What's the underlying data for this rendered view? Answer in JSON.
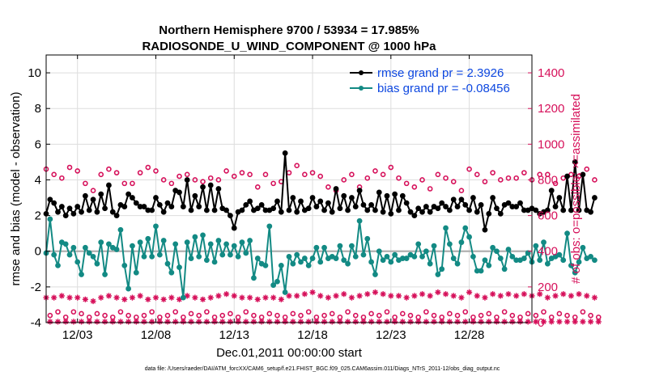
{
  "chart_data": {
    "type": "line",
    "title_line1": "Northern Hemisphere 9700 / 53934 = 17.985%",
    "title_line2": "RADIOSONDE_U_WIND_COMPONENT @ 1000 hPa",
    "xlabel": "Dec.01,2011 00:00:00 start",
    "ylabel_left": "rmse and bias (model - observation)",
    "ylabel_right": "# of obs: o=possible; ×=assimilated",
    "footer": "data file: /Users/raeder/DAI/ATM_forcXX/CAM6_setup/f.e21.FHIST_BGC.f09_025.CAM6assim.011/Diags_NTrS_2011-12/obs_diag_output.nc",
    "xlim": [
      0,
      31
    ],
    "ylim_left": [
      -4,
      11
    ],
    "ylim_right": [
      0,
      1500
    ],
    "x_ticks": [
      2,
      7,
      12,
      17,
      22,
      27
    ],
    "x_tick_labels": [
      "12/03",
      "12/08",
      "12/13",
      "12/18",
      "12/23",
      "12/28"
    ],
    "y_left_ticks": [
      -4,
      -2,
      0,
      2,
      4,
      6,
      8,
      10
    ],
    "y_left_tick_labels": [
      "-4",
      "-2",
      "0",
      "2",
      "4",
      "6",
      "8",
      "10"
    ],
    "y_right_ticks": [
      0,
      200,
      400,
      600,
      800,
      1000,
      1200,
      1400
    ],
    "y_right_tick_labels": [
      "0",
      "200",
      "400",
      "600",
      "800",
      "1000",
      "1200",
      "1400"
    ],
    "legend": [
      {
        "name": "rmse",
        "label": "rmse grand pr = 2.3926",
        "color": "#000000"
      },
      {
        "name": "bias",
        "label": "bias grand pr = -0.08456",
        "color": "#138a84"
      }
    ],
    "colors": {
      "rmse": "#000000",
      "bias": "#138a84",
      "obs": "#d6105a",
      "zero": "#b0b0b0",
      "grid": "#dddddd"
    },
    "x_step": 0.25,
    "rmse": [
      2.1,
      2.9,
      2.7,
      2.2,
      2.5,
      2.0,
      2.4,
      2.1,
      2.5,
      2.2,
      3.1,
      2.3,
      2.9,
      2.2,
      3.2,
      2.4,
      3.7,
      2.2,
      2.0,
      2.6,
      2.5,
      3.2,
      3.0,
      2.7,
      2.5,
      2.5,
      2.3,
      2.3,
      3.0,
      2.6,
      2.2,
      2.7,
      2.5,
      3.4,
      3.3,
      2.5,
      4.0,
      2.3,
      3.1,
      2.5,
      3.6,
      2.3,
      3.7,
      2.3,
      3.5,
      2.4,
      2.3,
      2.0,
      1.3,
      2.2,
      2.3,
      2.6,
      2.8,
      2.3,
      2.4,
      2.6,
      2.3,
      2.3,
      2.4,
      2.8,
      2.2,
      5.5,
      2.3,
      3.0,
      2.2,
      2.8,
      2.3,
      2.4,
      3.0,
      2.5,
      2.8,
      2.3,
      2.7,
      2.2,
      3.5,
      2.4,
      3.1,
      2.3,
      3.0,
      2.5,
      3.4,
      2.6,
      2.3,
      2.6,
      2.3,
      3.3,
      2.2,
      3.1,
      2.1,
      3.2,
      2.3,
      3.1,
      2.7,
      2.2,
      2.0,
      2.4,
      2.2,
      2.5,
      2.2,
      2.5,
      2.4,
      2.7,
      2.5,
      2.3,
      2.9,
      2.5,
      2.9,
      2.6,
      2.3,
      3.0,
      2.2,
      2.6,
      1.2,
      2.1,
      3.0,
      2.4,
      2.1,
      2.6,
      2.7,
      2.5,
      2.5,
      2.7,
      2.3,
      2.3,
      2.4,
      2.3,
      2.1,
      2.2,
      2.3,
      3.4,
      2.5,
      3.0,
      2.3,
      4.2,
      2.3,
      5.0,
      2.3,
      4.3,
      2.3,
      2.2,
      3.0
    ],
    "bias": [
      -0.1,
      1.8,
      -0.2,
      -0.8,
      0.5,
      0.4,
      -0.2,
      0.2,
      -0.6,
      -1.3,
      0.2,
      -0.1,
      -0.3,
      -0.7,
      0.5,
      -1.3,
      0.4,
      0.2,
      0.1,
      1.2,
      -0.8,
      -2.1,
      0.3,
      -1.2,
      0.5,
      -0.3,
      0.7,
      -0.3,
      1.4,
      -0.2,
      0.6,
      -0.7,
      -1.2,
      0.4,
      -0.9,
      -2.6,
      0.5,
      -0.4,
      0.8,
      -0.3,
      0.9,
      -0.5,
      0.4,
      -0.6,
      0.6,
      -0.2,
      0.4,
      -0.2,
      0.3,
      -0.3,
      0.5,
      -0.1,
      0.6,
      -1.5,
      -0.4,
      -0.7,
      -0.8,
      1.4,
      -1.9,
      -1.7,
      -0.8,
      -2.3,
      -0.3,
      -0.7,
      -0.2,
      -0.6,
      -0.4,
      -0.8,
      -0.4,
      0.2,
      -0.6,
      0.2,
      -0.4,
      -0.3,
      -0.4,
      0.3,
      -0.5,
      -0.7,
      0.3,
      -0.3,
      1.7,
      -0.2,
      0.7,
      -0.6,
      -1.3,
      0.0,
      -0.5,
      -0.3,
      -0.6,
      -0.2,
      -0.5,
      -0.4,
      -0.4,
      -0.2,
      -0.3,
      0.4,
      -0.3,
      0.0,
      -0.7,
      0.3,
      -1.3,
      -1.0,
      1.3,
      0.4,
      -0.4,
      -0.7,
      0.5,
      1.3,
      0.8,
      -0.3,
      -1.1,
      -1.1,
      -0.5,
      -0.8,
      0.2,
      0.0,
      -0.4,
      -1.0,
      0.1,
      -0.3,
      -0.5,
      -0.5,
      -0.4,
      -0.1,
      -0.6,
      0.3,
      -0.5,
      0.5,
      -0.7,
      -0.4,
      -0.3,
      -0.2,
      -0.5,
      1.0,
      -0.8,
      -1.2,
      -0.6,
      0.2,
      -0.4,
      -0.3,
      -0.5
    ],
    "obs_possible_odd": [
      860,
      830,
      810,
      870,
      850,
      780,
      740,
      830,
      860,
      840,
      780,
      780,
      840,
      870,
      850,
      800,
      780,
      820,
      830,
      800,
      790,
      810,
      800,
      850,
      820,
      840,
      830,
      760,
      830,
      780,
      790,
      840,
      880,
      830,
      840,
      820,
      760,
      740,
      800,
      830,
      760,
      810,
      850,
      830,
      870,
      810,
      780,
      760,
      800,
      750,
      830,
      810,
      790,
      740,
      860,
      830,
      790,
      840,
      800,
      810,
      810,
      840,
      800,
      830,
      830,
      780,
      810,
      830,
      820,
      860,
      800
    ],
    "obs_possible_even": [
      40,
      60,
      30,
      60,
      50,
      30,
      50,
      40,
      30,
      60,
      40,
      30,
      40,
      60,
      30,
      40,
      60,
      30,
      50,
      40,
      60,
      30,
      40,
      50,
      30,
      60,
      40,
      30,
      50,
      40,
      30,
      50,
      40,
      60,
      30,
      40,
      50,
      30,
      60,
      40,
      30,
      50,
      40,
      60,
      30,
      50,
      40,
      30,
      60,
      40,
      30,
      50,
      40,
      60,
      30,
      40,
      50,
      30,
      60,
      40,
      30,
      50,
      40,
      60,
      30,
      50,
      40,
      30,
      60,
      40,
      30
    ],
    "obs_assim_odd": [
      140,
      140,
      150,
      140,
      140,
      130,
      120,
      140,
      150,
      140,
      130,
      140,
      150,
      130,
      140,
      130,
      140,
      130,
      150,
      140,
      130,
      140,
      150,
      160,
      150,
      140,
      140,
      130,
      140,
      140,
      130,
      150,
      150,
      160,
      170,
      150,
      140,
      150,
      160,
      140,
      150,
      160,
      170,
      160,
      150,
      150,
      140,
      150,
      160,
      150,
      170,
      160,
      150,
      140,
      170,
      150,
      140,
      160,
      150,
      160,
      150,
      160,
      150,
      160,
      140,
      150,
      160,
      150,
      160,
      150,
      140
    ],
    "obs_assim_even": [
      5,
      5,
      5,
      5,
      5,
      5,
      5,
      5,
      5,
      5,
      5,
      5,
      5,
      5,
      5,
      5,
      5,
      5,
      5,
      5,
      5,
      5,
      5,
      5,
      5,
      5,
      5,
      5,
      5,
      5,
      5,
      5,
      5,
      5,
      5,
      5,
      5,
      5,
      5,
      5,
      5,
      5,
      5,
      5,
      5,
      5,
      5,
      5,
      5,
      5,
      5,
      5,
      5,
      5,
      5,
      5,
      5,
      5,
      5,
      5,
      5,
      5,
      5,
      5,
      5,
      5,
      5,
      5,
      5,
      5,
      5
    ]
  }
}
